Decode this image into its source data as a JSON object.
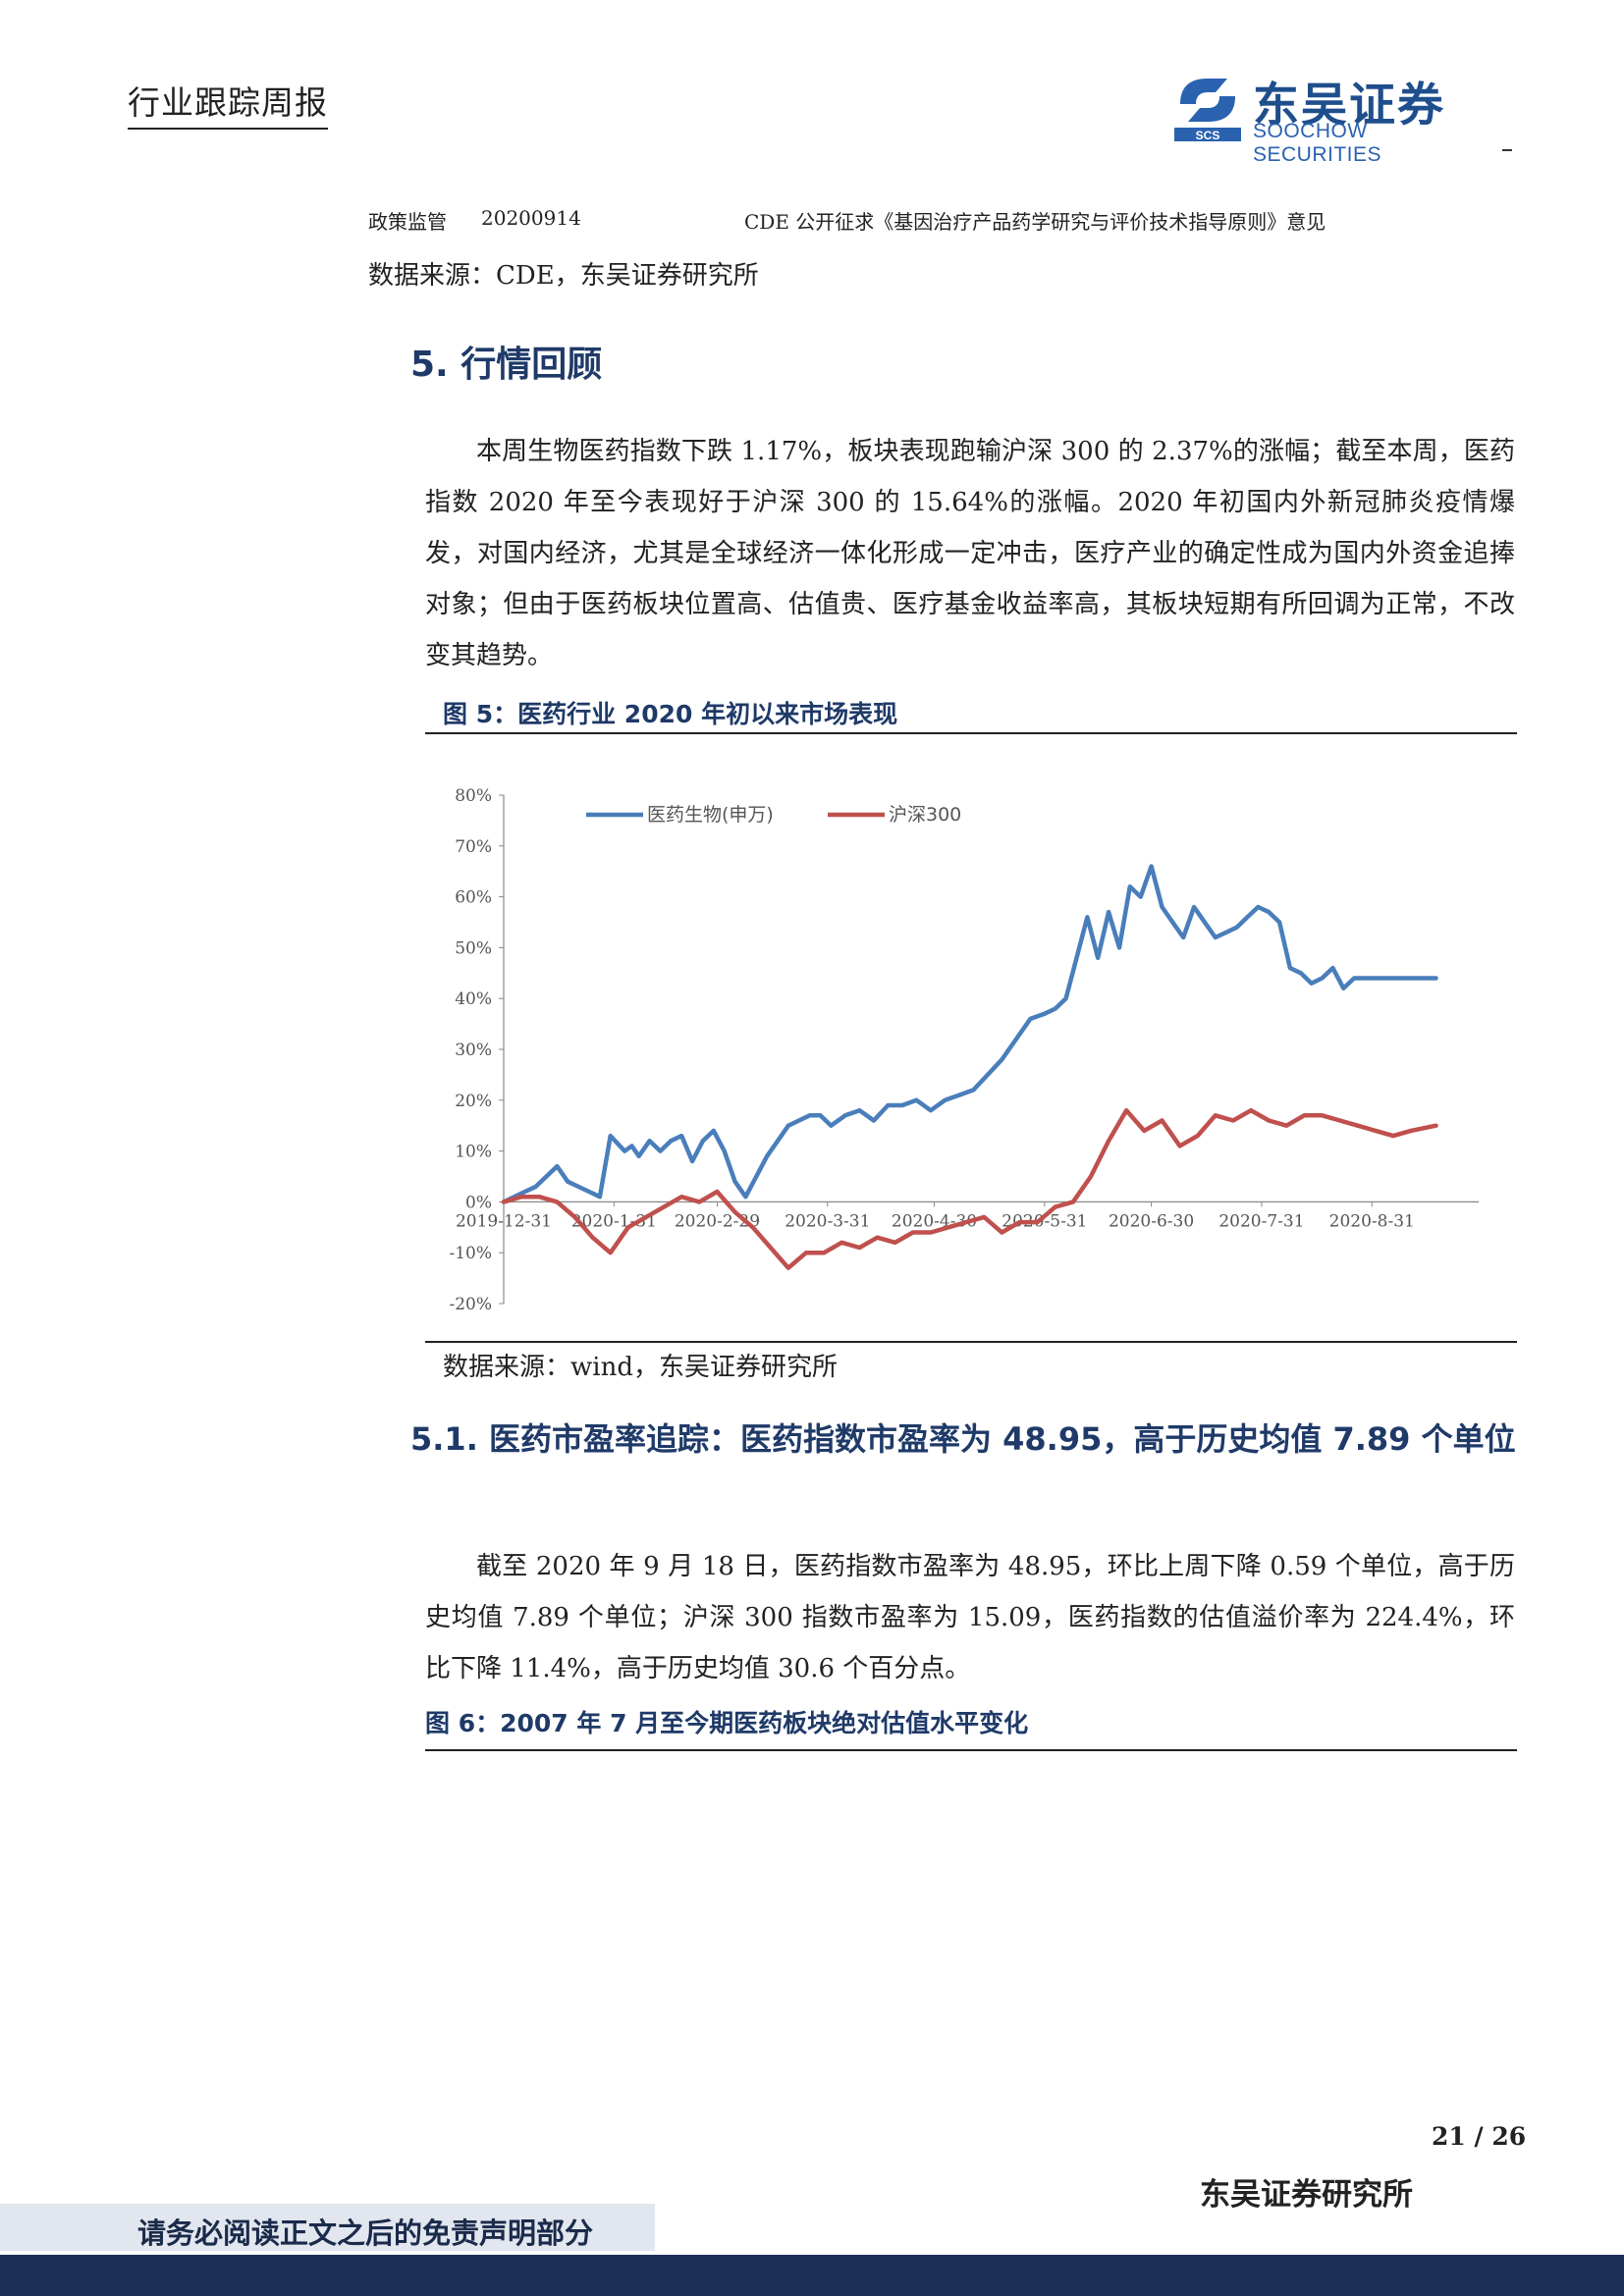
{
  "header": {
    "report_type": "行业跟踪周报",
    "logo_name": "东吴证券",
    "logo_abbr": "SCS",
    "logo_en": "SOOCHOW SECURITIES"
  },
  "policy_row": {
    "category": "政策监管",
    "date": "20200914",
    "title": "CDE 公开征求《基因治疗产品药学研究与评价技术指导原则》意见"
  },
  "table_source": "数据来源：CDE，东吴证券研究所",
  "section5": {
    "title": "5. 行情回顾",
    "paragraph": "本周生物医药指数下跌 1.17%，板块表现跑输沪深 300 的 2.37%的涨幅；截至本周，医药指数 2020 年至今表现好于沪深 300 的 15.64%的涨幅。2020 年初国内外新冠肺炎疫情爆发，对国内经济，尤其是全球经济一体化形成一定冲击，医疗产业的确定性成为国内外资金追捧对象；但由于医药板块位置高、估值贵、医疗基金收益率高，其板块短期有所回调为正常，不改变其趋势。"
  },
  "figure5": {
    "caption": "图 5：医药行业 2020 年初以来市场表现",
    "source": "数据来源：wind，东吴证券研究所"
  },
  "chart_data": {
    "type": "line",
    "title": "",
    "xlabel": "",
    "ylabel": "",
    "ylim": [
      -20,
      80
    ],
    "yticks": [
      "80%",
      "70%",
      "60%",
      "50%",
      "40%",
      "30%",
      "20%",
      "10%",
      "0%",
      "-10%",
      "-20%"
    ],
    "xticks": [
      "2019-12-31",
      "2020-1-31",
      "2020-2-29",
      "2020-3-31",
      "2020-4-30",
      "2020-5-31",
      "2020-6-30",
      "2020-7-31",
      "2020-8-31"
    ],
    "legend_position": "top-left",
    "grid": false,
    "series": [
      {
        "name": "医药生物(申万)",
        "color": "#4a7ebb",
        "x": [
          "2019-12-31",
          "2020-01-03",
          "2020-01-06",
          "2020-01-09",
          "2020-01-12",
          "2020-01-15",
          "2020-01-18",
          "2020-01-21",
          "2020-01-24",
          "2020-01-27",
          "2020-01-30",
          "2020-02-03",
          "2020-02-05",
          "2020-02-07",
          "2020-02-10",
          "2020-02-13",
          "2020-02-16",
          "2020-02-19",
          "2020-02-22",
          "2020-02-25",
          "2020-02-28",
          "2020-03-02",
          "2020-03-05",
          "2020-03-08",
          "2020-03-11",
          "2020-03-14",
          "2020-03-17",
          "2020-03-20",
          "2020-03-23",
          "2020-03-26",
          "2020-03-29",
          "2020-04-01",
          "2020-04-05",
          "2020-04-09",
          "2020-04-13",
          "2020-04-17",
          "2020-04-21",
          "2020-04-25",
          "2020-04-29",
          "2020-05-03",
          "2020-05-07",
          "2020-05-11",
          "2020-05-15",
          "2020-05-19",
          "2020-05-23",
          "2020-05-27",
          "2020-05-31",
          "2020-06-03",
          "2020-06-06",
          "2020-06-09",
          "2020-06-12",
          "2020-06-15",
          "2020-06-18",
          "2020-06-21",
          "2020-06-24",
          "2020-06-27",
          "2020-06-30",
          "2020-07-03",
          "2020-07-06",
          "2020-07-09",
          "2020-07-12",
          "2020-07-15",
          "2020-07-18",
          "2020-07-21",
          "2020-07-24",
          "2020-07-27",
          "2020-07-30",
          "2020-08-02",
          "2020-08-05",
          "2020-08-08",
          "2020-08-11",
          "2020-08-14",
          "2020-08-17",
          "2020-08-20",
          "2020-08-23",
          "2020-08-26",
          "2020-08-29",
          "2020-09-01",
          "2020-09-04",
          "2020-09-07",
          "2020-09-10",
          "2020-09-13",
          "2020-09-18"
        ],
        "values": [
          0,
          1,
          2,
          3,
          5,
          7,
          4,
          3,
          2,
          1,
          13,
          10,
          11,
          9,
          12,
          10,
          12,
          13,
          8,
          12,
          14,
          10,
          4,
          1,
          5,
          9,
          12,
          15,
          16,
          17,
          17,
          15,
          17,
          18,
          16,
          19,
          19,
          20,
          18,
          20,
          21,
          22,
          25,
          28,
          32,
          36,
          37,
          38,
          40,
          48,
          56,
          48,
          57,
          50,
          62,
          60,
          66,
          58,
          55,
          52,
          58,
          55,
          52,
          53,
          54,
          56,
          58,
          57,
          55,
          46,
          45,
          43,
          44,
          46,
          42,
          44,
          44,
          44,
          44,
          44,
          44,
          44,
          44
        ]
      },
      {
        "name": "沪深300",
        "color": "#c0504d",
        "x": [
          "2019-12-31",
          "2020-01-05",
          "2020-01-10",
          "2020-01-15",
          "2020-01-20",
          "2020-01-25",
          "2020-01-30",
          "2020-02-04",
          "2020-02-09",
          "2020-02-14",
          "2020-02-19",
          "2020-02-24",
          "2020-02-29",
          "2020-03-05",
          "2020-03-10",
          "2020-03-15",
          "2020-03-20",
          "2020-03-25",
          "2020-03-30",
          "2020-04-04",
          "2020-04-09",
          "2020-04-14",
          "2020-04-19",
          "2020-04-24",
          "2020-04-29",
          "2020-05-04",
          "2020-05-09",
          "2020-05-14",
          "2020-05-19",
          "2020-05-24",
          "2020-05-29",
          "2020-06-03",
          "2020-06-08",
          "2020-06-13",
          "2020-06-18",
          "2020-06-23",
          "2020-06-28",
          "2020-07-03",
          "2020-07-08",
          "2020-07-13",
          "2020-07-18",
          "2020-07-23",
          "2020-07-28",
          "2020-08-02",
          "2020-08-07",
          "2020-08-12",
          "2020-08-17",
          "2020-08-22",
          "2020-08-27",
          "2020-09-01",
          "2020-09-06",
          "2020-09-11",
          "2020-09-18"
        ],
        "values": [
          0,
          1,
          1,
          0,
          -3,
          -7,
          -10,
          -5,
          -3,
          -1,
          1,
          0,
          2,
          -2,
          -5,
          -9,
          -13,
          -10,
          -10,
          -8,
          -9,
          -7,
          -8,
          -6,
          -6,
          -5,
          -4,
          -3,
          -6,
          -4,
          -4,
          -1,
          0,
          5,
          12,
          18,
          14,
          16,
          11,
          13,
          17,
          16,
          18,
          16,
          15,
          17,
          17,
          16,
          15,
          14,
          13,
          14,
          15
        ]
      }
    ]
  },
  "section5_1": {
    "title": "5.1. 医药市盈率追踪：医药指数市盈率为 48.95，高于历史均值 7.89 个单位",
    "paragraph": "截至 2020 年 9 月 18 日，医药指数市盈率为 48.95，环比上周下降 0.59 个单位，高于历史均值 7.89 个单位；沪深 300 指数市盈率为 15.09，医药指数的估值溢价率为 224.4%，环比下降 11.4%，高于历史均值 30.6 个百分点。"
  },
  "figure6": {
    "caption": "图 6：2007 年 7 月至今期医药板块绝对估值水平变化"
  },
  "footer": {
    "page": "21 / 26",
    "institute": "东吴证券研究所",
    "disclaimer": "请务必阅读正文之后的免责声明部分"
  }
}
